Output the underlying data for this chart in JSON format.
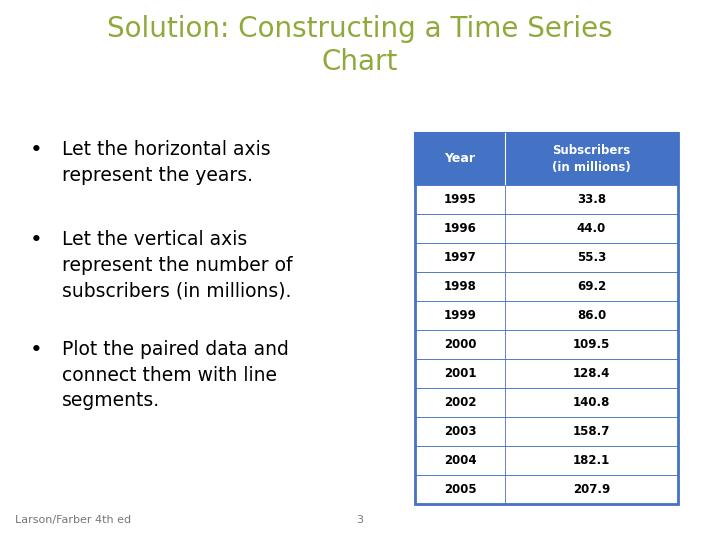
{
  "title_line1": "Solution: Constructing a Time Series",
  "title_line2": "Chart",
  "title_color": "#8faa3b",
  "background_color": "#ffffff",
  "bullet_points": [
    "Let the horizontal axis\nrepresent the years.",
    "Let the vertical axis\nrepresent the number of\nsubscribers (in millions).",
    "Plot the paired data and\nconnect them with line\nsegments."
  ],
  "bullet_color": "#000000",
  "bullet_fontsize": 13.5,
  "table_years": [
    1995,
    1996,
    1997,
    1998,
    1999,
    2000,
    2001,
    2002,
    2003,
    2004,
    2005
  ],
  "table_subscribers": [
    33.8,
    44.0,
    55.3,
    69.2,
    86.0,
    109.5,
    128.4,
    140.8,
    158.7,
    182.1,
    207.9
  ],
  "table_header_bg": "#4472c4",
  "table_header_text_color": "#ffffff",
  "table_row_bg": "#ffffff",
  "table_border_color": "#4472c4",
  "table_col1_header": "Year",
  "table_col2_header_line1": "Subscribers",
  "table_col2_header_line2": "(in millions)",
  "footer_text_left": "Larson/Farber 4th ed",
  "footer_text_center": "3",
  "footer_color": "#777777",
  "footer_fontsize": 8
}
